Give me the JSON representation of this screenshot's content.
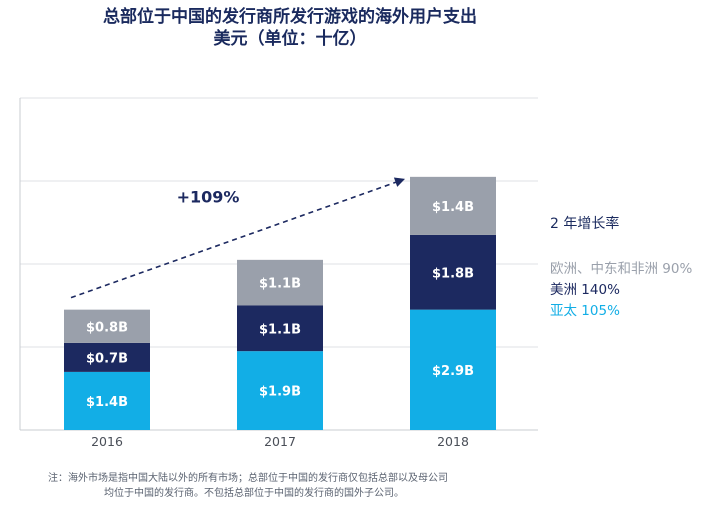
{
  "chart_data": {
    "type": "bar",
    "stacked": true,
    "title": "总部位于中国的发行商所发行游戏的海外用户支出",
    "subtitle": "美元（单位：十亿）",
    "categories": [
      "2016",
      "2017",
      "2018"
    ],
    "series": [
      {
        "name": "亚太",
        "color": "#12aee6",
        "values": [
          1.4,
          1.9,
          2.9
        ],
        "labels": [
          "$1.4B",
          "$1.9B",
          "$2.9B"
        ]
      },
      {
        "name": "美洲",
        "color": "#1c2960",
        "values": [
          0.7,
          1.1,
          1.8
        ],
        "labels": [
          "$0.7B",
          "$1.1B",
          "$1.8B"
        ]
      },
      {
        "name": "欧洲、中东和非洲",
        "color": "#9aa0ab",
        "values": [
          0.8,
          1.1,
          1.4
        ],
        "labels": [
          "$0.8B",
          "$1.1B",
          "$1.4B"
        ]
      }
    ],
    "ylim": [
      0,
      8
    ],
    "grid": true,
    "annotation": {
      "text": "+109%",
      "from": "2016",
      "to": "2018"
    },
    "legend": {
      "title": "2 年增长率",
      "entries": [
        {
          "name": "欧洲、中东和非洲",
          "growth": "90%",
          "color": "#9aa0ab"
        },
        {
          "name": "美洲",
          "growth": "140%",
          "color": "#1c2960"
        },
        {
          "name": "亚太",
          "growth": "105%",
          "color": "#12aee6"
        }
      ]
    }
  },
  "footnote": {
    "line1": "注：海外市场是指中国大陆以外的所有市场；总部位于中国的发行商仅包括总部以及母公司",
    "line2": "均位于中国的发行商。不包括总部位于中国的发行商的国外子公司。"
  }
}
